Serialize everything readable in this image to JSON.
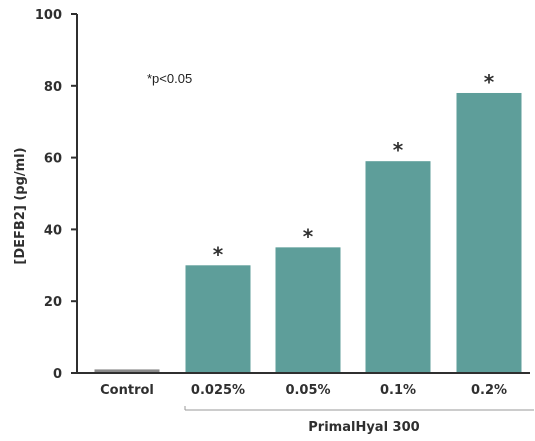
{
  "chart_data": {
    "type": "bar",
    "categories": [
      "Control",
      "0.025%",
      "0.05%",
      "0.1%",
      "0.2%"
    ],
    "values": [
      1,
      30,
      35,
      59,
      78
    ],
    "significant": [
      false,
      true,
      true,
      true,
      true
    ],
    "significance_marker": "*",
    "ylabel": "[DEFB2] (pg/ml)",
    "xlabel": "",
    "ylim": [
      0,
      100
    ],
    "yticks": [
      0,
      20,
      40,
      60,
      80,
      100
    ],
    "annotation": "*p<0.05",
    "group_label": "PrimalHyal 300",
    "group_categories": [
      "0.025%",
      "0.05%",
      "0.1%",
      "0.2%"
    ],
    "colors": {
      "bar": "#5e9e9a",
      "control_bar": "#8a8a8a",
      "axis": "#2f2f2f"
    },
    "grid": false,
    "legend": "none"
  }
}
